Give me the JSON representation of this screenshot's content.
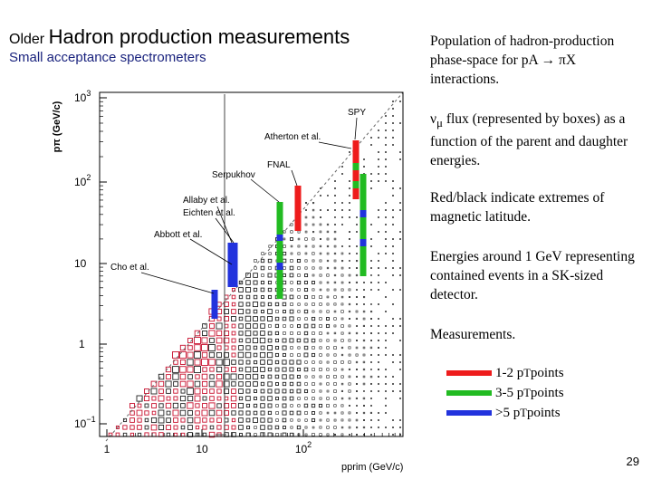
{
  "slide": {
    "title_prefix": "Older",
    "title": "Hadron production measurements",
    "subtitle": "Small acceptance spectrometers",
    "page_number": "29"
  },
  "text": {
    "block1": "Population of hadron-production phase-space for pA → πX interactions.",
    "block2_symbol": "ν",
    "block2_sub": "μ",
    "block2_rest": " flux (represented by boxes) as a function of the parent and daughter energies.",
    "block3": "Red/black indicate extremes of magnetic latitude.",
    "block4": "Energies around 1 GeV representing contained events in a SK-sized detector.",
    "block5": "Measurements."
  },
  "legend": [
    {
      "pre": "1-2 p",
      "sub": "T",
      "post": " points",
      "color": "#ee1c1c"
    },
    {
      "pre": "3-5 p",
      "sub": "T",
      "post": " points",
      "color": "#22bb22"
    },
    {
      "pre": ">5 p",
      "sub": "T",
      "post": " points",
      "color": "#2233dd"
    }
  ],
  "plot": {
    "y_axis_label": "pπ (GeV/c)",
    "x_axis_label": "pprim (GeV/c)",
    "y_ticks": [
      {
        "base": "10",
        "exp": "3"
      },
      {
        "base": "10",
        "exp": "2"
      },
      {
        "base": "10",
        "exp": ""
      },
      {
        "base": "1",
        "exp": ""
      },
      {
        "base": "10",
        "exp": "−1"
      }
    ],
    "x_ticks": [
      {
        "base": "1",
        "exp": ""
      },
      {
        "base": "10",
        "exp": ""
      },
      {
        "base": "10",
        "exp": "2"
      }
    ],
    "experiments": [
      "SPY",
      "Atherton et al.",
      "FNAL",
      "Serpukhov",
      "Allaby et al.",
      "Eichten et al.",
      "Abbott et al.",
      "Cho et al."
    ]
  }
}
